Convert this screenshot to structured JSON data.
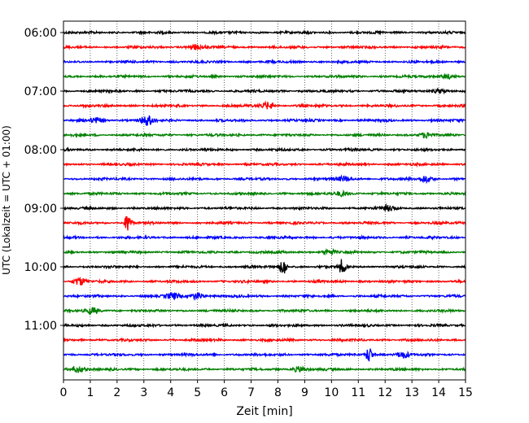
{
  "chart_data": {
    "type": "line",
    "title": "",
    "xlabel": "Zeit  [min]",
    "ylabel": "UTC (Lokalzeit = UTC + 01:00)",
    "xlim": [
      0,
      15
    ],
    "x_ticks": [
      0,
      1,
      2,
      3,
      4,
      5,
      6,
      7,
      8,
      9,
      10,
      11,
      12,
      13,
      14,
      15
    ],
    "x_tick_labels": [
      "0",
      "1",
      "2",
      "3",
      "4",
      "5",
      "6",
      "7",
      "8",
      "9",
      "10",
      "11",
      "12",
      "13",
      "14",
      "15"
    ],
    "y_tick_labels": [
      "06:00",
      "07:00",
      "08:00",
      "09:00",
      "10:00",
      "11:00"
    ],
    "grid": "vertical dotted lines at each minute",
    "trace_interval_min": 15,
    "color_cycle": [
      "#000000",
      "#ff0000",
      "#0000ff",
      "#008000"
    ],
    "traces": [
      {
        "start": "06:00",
        "bursts": []
      },
      {
        "start": "06:15",
        "bursts": [
          {
            "min": 4.9,
            "amp": 1.4
          }
        ]
      },
      {
        "start": "06:30",
        "bursts": []
      },
      {
        "start": "06:45",
        "bursts": [
          {
            "min": 14.3,
            "amp": 1.2
          }
        ]
      },
      {
        "start": "07:00",
        "bursts": [
          {
            "min": 14.0,
            "amp": 1.2
          }
        ]
      },
      {
        "start": "07:15",
        "bursts": [
          {
            "min": 7.6,
            "amp": 1.8
          }
        ]
      },
      {
        "start": "07:30",
        "bursts": [
          {
            "min": 1.2,
            "amp": 1.3
          },
          {
            "min": 3.1,
            "amp": 2.6
          }
        ]
      },
      {
        "start": "07:45",
        "bursts": [
          {
            "min": 13.5,
            "amp": 1.2
          }
        ]
      },
      {
        "start": "08:00",
        "bursts": []
      },
      {
        "start": "08:15",
        "bursts": []
      },
      {
        "start": "08:30",
        "bursts": [
          {
            "min": 10.5,
            "amp": 1.3
          },
          {
            "min": 13.5,
            "amp": 1.8
          }
        ]
      },
      {
        "start": "08:45",
        "bursts": [
          {
            "min": 10.4,
            "amp": 1.4
          }
        ]
      },
      {
        "start": "09:00",
        "bursts": [
          {
            "min": 12.1,
            "amp": 1.3
          }
        ]
      },
      {
        "start": "09:15",
        "bursts": [
          {
            "min": 2.4,
            "amp": 5.0
          }
        ]
      },
      {
        "start": "09:30",
        "bursts": []
      },
      {
        "start": "09:45",
        "bursts": [
          {
            "min": 9.9,
            "amp": 1.3
          }
        ]
      },
      {
        "start": "10:00",
        "bursts": [
          {
            "min": 8.2,
            "amp": 5.0
          },
          {
            "min": 10.4,
            "amp": 4.0
          }
        ]
      },
      {
        "start": "10:15",
        "bursts": [
          {
            "min": 0.6,
            "amp": 2.0
          }
        ]
      },
      {
        "start": "10:30",
        "bursts": [
          {
            "min": 4.1,
            "amp": 1.6
          },
          {
            "min": 5.0,
            "amp": 1.8
          }
        ]
      },
      {
        "start": "10:45",
        "bursts": [
          {
            "min": 1.1,
            "amp": 1.5
          }
        ]
      },
      {
        "start": "11:00",
        "bursts": []
      },
      {
        "start": "11:15",
        "bursts": []
      },
      {
        "start": "11:30",
        "bursts": [
          {
            "min": 11.4,
            "amp": 4.5
          },
          {
            "min": 12.7,
            "amp": 1.5
          }
        ]
      },
      {
        "start": "11:45",
        "bursts": [
          {
            "min": 0.5,
            "amp": 1.8
          },
          {
            "min": 8.8,
            "amp": 1.4
          }
        ]
      }
    ]
  }
}
